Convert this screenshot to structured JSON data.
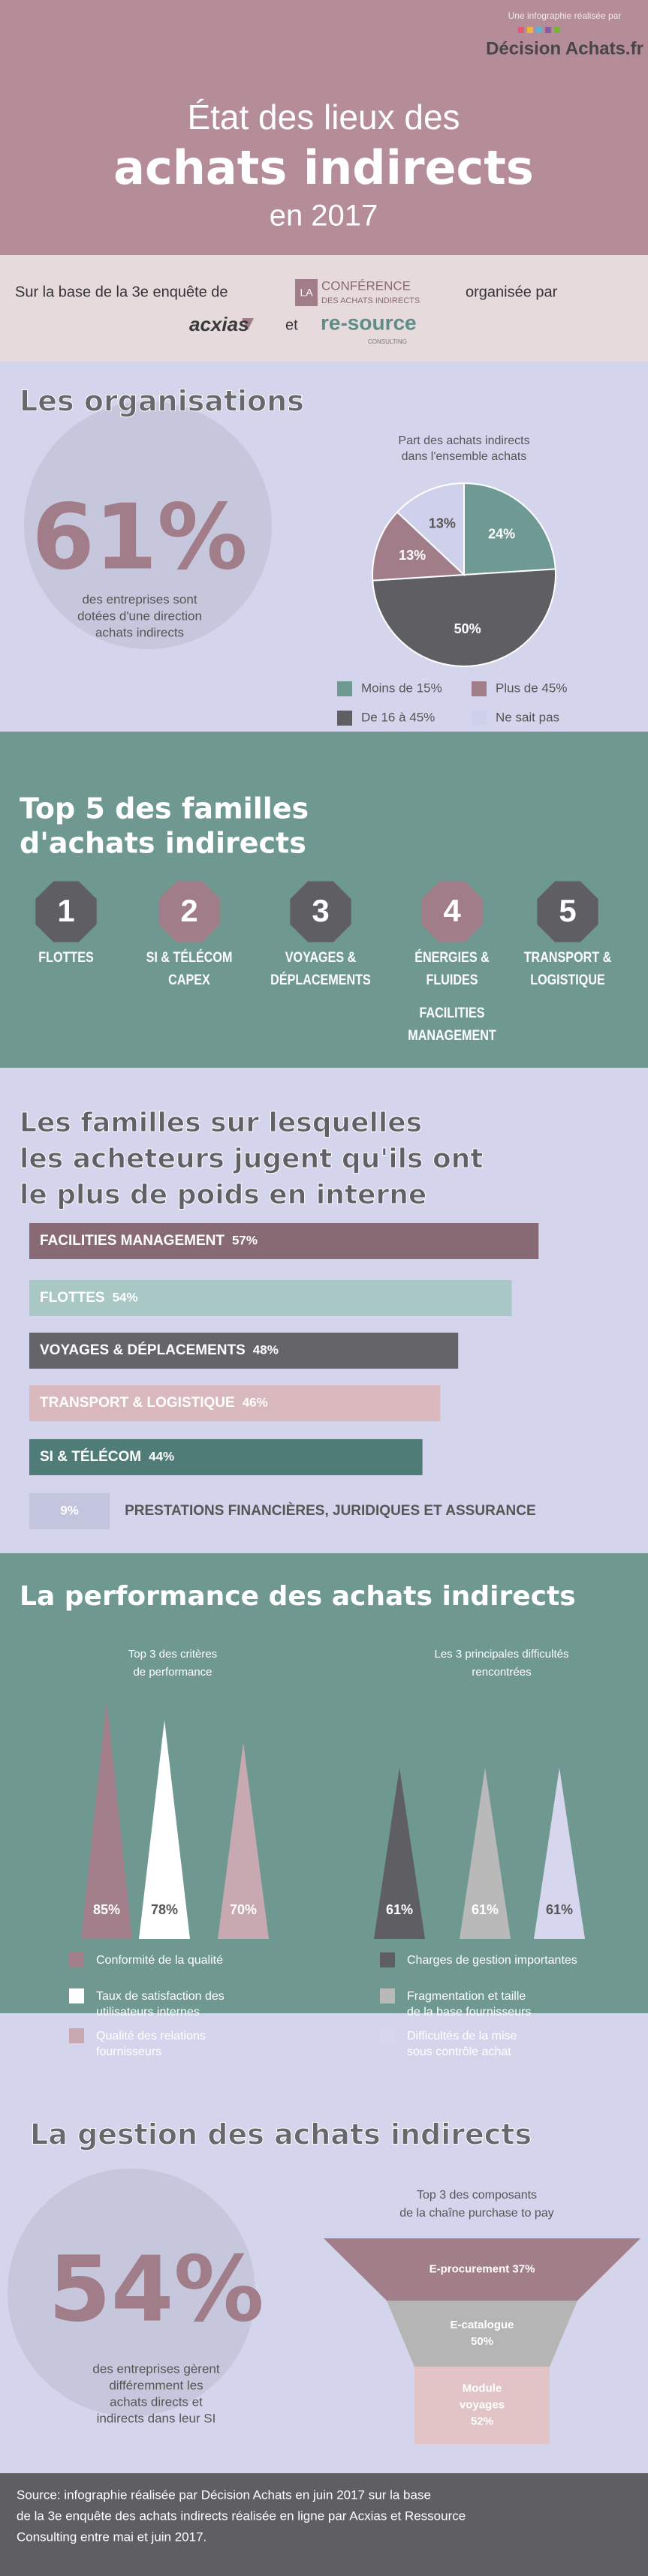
{
  "header": {
    "credit": "Une infographie réalisée par",
    "brand": "Décision Achats.fr",
    "title": [
      "État des lieux des",
      "achats indirects",
      "en 2017"
    ]
  },
  "sponsors": {
    "intro": "Sur la base de la 3e enquête de",
    "badge": "LA",
    "conference": [
      "CONFÉRENCE",
      "DES ACHATS INDIRECTS"
    ],
    "organised": "organisée par",
    "partner1": "acxias",
    "and": "et",
    "partner2": "re-source",
    "partner2_sub": "CONSULTING"
  },
  "organisations": {
    "title": "Les organisations",
    "stat": "61%",
    "stat_text": [
      "des entreprises sont",
      "dotées d'une direction",
      "achats indirects"
    ],
    "pie": {
      "title": [
        "Part des achats indirects",
        "dans l'ensemble achats"
      ],
      "slices": [
        {
          "name": "Moins de 15%",
          "value": 24,
          "value_label": "24%",
          "color": "#6f9a93"
        },
        {
          "name": "De 16 à 45%",
          "value": 50,
          "value_label": "50%",
          "color": "#5f5e63"
        },
        {
          "name": "Plus de 45%",
          "value": 13,
          "value_label": "13%",
          "color": "#a07d88"
        },
        {
          "name": "Ne sait pas",
          "value": 13,
          "value_label": "13%",
          "color": "#cfd0ec"
        }
      ]
    }
  },
  "top5": {
    "title": [
      "Top 5 des familles",
      "d'achats indirects"
    ],
    "items": [
      {
        "rank": "1",
        "color": "#5f5e63",
        "label": [
          "FLOTTES"
        ]
      },
      {
        "rank": "2",
        "color": "#a07d88",
        "label": [
          "SI & TÉLÉCOM",
          "CAPEX"
        ]
      },
      {
        "rank": "3",
        "color": "#5f5e63",
        "label": [
          "VOYAGES &",
          "DÉPLACEMENTS"
        ]
      },
      {
        "rank": "4",
        "color": "#a07d88",
        "label": [
          "ÉNERGIES &",
          "FLUIDES",
          "FACILITIES",
          "MANAGEMENT"
        ]
      },
      {
        "rank": "5",
        "color": "#5f5e63",
        "label": [
          "TRANSPORT &",
          "LOGISTIQUE"
        ]
      }
    ]
  },
  "familles": {
    "title": [
      "Les familles sur lesquelles",
      "les acheteurs jugent qu'ils ont",
      "le plus de poids en interne"
    ],
    "bars": [
      {
        "name": "FACILITIES MANAGEMENT",
        "value": 57,
        "value_label": "57%",
        "color": "#876a73"
      },
      {
        "name": "FLOTTES",
        "value": 54,
        "value_label": "54%",
        "color": "#a9c7c4"
      },
      {
        "name": "VOYAGES & DÉPLACEMENTS",
        "value": 48,
        "value_label": "48%",
        "color": "#656468"
      },
      {
        "name": "TRANSPORT & LOGISTIQUE",
        "value": 46,
        "value_label": "46%",
        "color": "#d9b8be"
      },
      {
        "name": "SI & TÉLÉCOM",
        "value": 44,
        "value_label": "44%",
        "color": "#4f7c76"
      },
      {
        "name": "PRESTATIONS FINANCIÈRES, JURIDIQUES ET ASSURANCE",
        "value": 9,
        "value_label": "9%",
        "color": "#c3c4dd"
      }
    ]
  },
  "performance": {
    "title": "La performance des achats indirects",
    "groups": [
      {
        "title": [
          "Top 3 des critères",
          "de performance"
        ],
        "items": [
          {
            "name": [
              "Conformité de la qualité"
            ],
            "value": 85,
            "value_label": "85%",
            "color": "#a37f8b"
          },
          {
            "name": [
              "Taux de satisfaction des",
              "utilisateurs internes"
            ],
            "value": 78,
            "value_label": "78%",
            "color": "#ffffff"
          },
          {
            "name": [
              "Qualité des relations",
              "fournisseurs"
            ],
            "value": 70,
            "value_label": "70%",
            "color": "#c9a9b1"
          }
        ]
      },
      {
        "title": [
          "Les 3 principales difficultés",
          "rencontrées"
        ],
        "items": [
          {
            "name": [
              "Charges de gestion importantes"
            ],
            "value": 61,
            "value_label": "61%",
            "color": "#5f5e63"
          },
          {
            "name": [
              "Fragmentation et taille",
              "de la base fournisseurs"
            ],
            "value": 61,
            "value_label": "61%",
            "color": "#b9b9b9"
          },
          {
            "name": [
              "Difficultés de la mise",
              "sous contrôle achat"
            ],
            "value": 61,
            "value_label": "61%",
            "color": "#d6d6ef"
          }
        ]
      }
    ]
  },
  "gestion": {
    "title": "La gestion des achats indirects",
    "stat": "54%",
    "stat_text": [
      "des entreprises gèrent",
      "différemment les",
      "achats directs et",
      "indirects dans leur SI"
    ],
    "funnel": {
      "title": [
        "Top 3 des composants",
        "de la chaîne purchase to pay"
      ],
      "items": [
        {
          "name": [
            "E-procurement 37%"
          ],
          "color": "#a27e89"
        },
        {
          "name": [
            "E-catalogue",
            "50%"
          ],
          "color": "#b5b5b5"
        },
        {
          "name": [
            "Module",
            "voyages",
            "52%"
          ],
          "color": "#e3c4c6"
        }
      ]
    }
  },
  "footer": {
    "text": [
      "Source: infographie réalisée par Décision Achats en juin 2017 sur la base",
      "de la 3e enquête des achats indirects réalisée en ligne par Acxias et Ressource",
      "Consulting entre mai et juin 2017."
    ]
  }
}
